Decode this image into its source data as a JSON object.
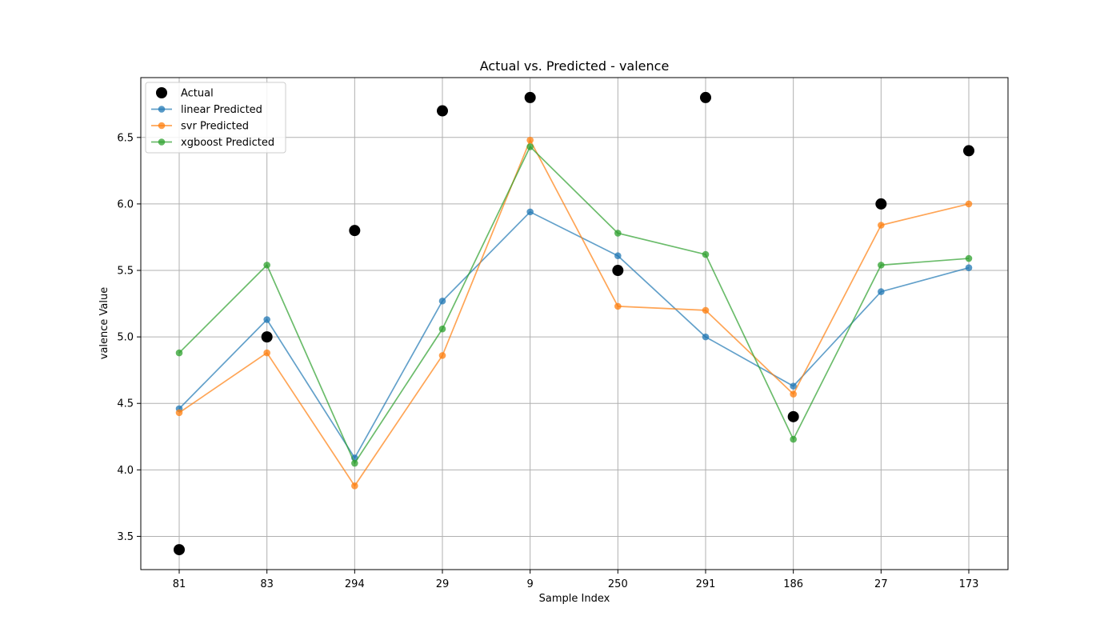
{
  "chart_data": {
    "type": "line",
    "title": "Actual vs. Predicted - valence",
    "xlabel": "Sample Index",
    "ylabel": "valence Value",
    "categories": [
      "81",
      "83",
      "294",
      "29",
      "9",
      "250",
      "291",
      "186",
      "27",
      "173"
    ],
    "ylim": [
      3.25,
      6.95
    ],
    "yticks": [
      3.5,
      4.0,
      4.5,
      5.0,
      5.5,
      6.0,
      6.5
    ],
    "ytick_labels": [
      "3.5",
      "4.0",
      "4.5",
      "5.0",
      "5.5",
      "6.0",
      "6.5"
    ],
    "grid": true,
    "legend_position": "top-left",
    "series": [
      {
        "name": "Actual",
        "kind": "scatter",
        "color": "#000000",
        "values": [
          3.4,
          5.0,
          5.8,
          6.7,
          6.8,
          5.5,
          6.8,
          4.4,
          6.0,
          6.4
        ]
      },
      {
        "name": "linear Predicted",
        "kind": "line",
        "color": "#1f77b4",
        "values": [
          4.46,
          5.13,
          4.09,
          5.27,
          5.94,
          5.61,
          5.0,
          4.63,
          5.34,
          5.52
        ]
      },
      {
        "name": "svr Predicted",
        "kind": "line",
        "color": "#ff7f0e",
        "values": [
          4.43,
          4.88,
          3.88,
          4.86,
          6.48,
          5.23,
          5.2,
          4.57,
          5.84,
          6.0
        ]
      },
      {
        "name": "xgboost Predicted",
        "kind": "line",
        "color": "#2ca02c",
        "values": [
          4.88,
          5.54,
          4.05,
          5.06,
          6.43,
          5.78,
          5.62,
          4.23,
          5.54,
          5.59
        ]
      }
    ]
  }
}
